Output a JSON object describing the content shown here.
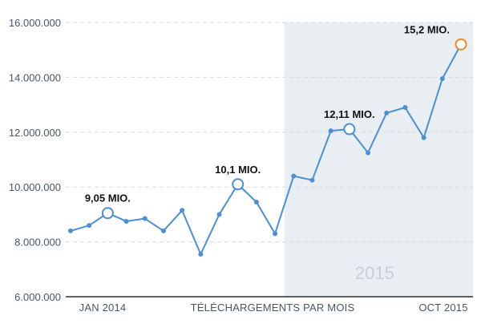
{
  "chart_data": {
    "type": "line",
    "title": "",
    "xlabel": "TÉLÉCHARGEMENTS PAR MOIS",
    "ylabel": "",
    "ylim": [
      6000000,
      16000000
    ],
    "yticks": [
      6000000,
      8000000,
      10000000,
      12000000,
      14000000,
      16000000
    ],
    "ytick_labels": [
      "6.000.000",
      "8.000.000",
      "10.000.000",
      "12.000.000",
      "14.000.000",
      "16.000.000"
    ],
    "x_start_label": "JAN 2014",
    "x_end_label": "OCT 2015",
    "grid": true,
    "shaded_period": {
      "label": "2015",
      "from_index": 12,
      "to_index": 21
    },
    "series": [
      {
        "color": "#4a90d2",
        "values": [
          8400000,
          8600000,
          9050000,
          8750000,
          8850000,
          8400000,
          9150000,
          7550000,
          9000000,
          10100000,
          9450000,
          8300000,
          10400000,
          10250000,
          12050000,
          12110000,
          11250000,
          12700000,
          12900000,
          11800000,
          13950000,
          15200000
        ]
      }
    ],
    "annotations": [
      {
        "index": 2,
        "text": "9,05 MIO."
      },
      {
        "index": 9,
        "text": "10,1 MIO."
      },
      {
        "index": 15,
        "text": "12,11 MIO."
      },
      {
        "index": 21,
        "text": "15,2 MIO.",
        "color": "#f08a24"
      }
    ]
  },
  "colors": {
    "line": "#4a90d2",
    "highlight": "#f08a24",
    "shade": "#e9eef3",
    "grid": "#d6dbe0",
    "axis": "#2a2f33"
  }
}
